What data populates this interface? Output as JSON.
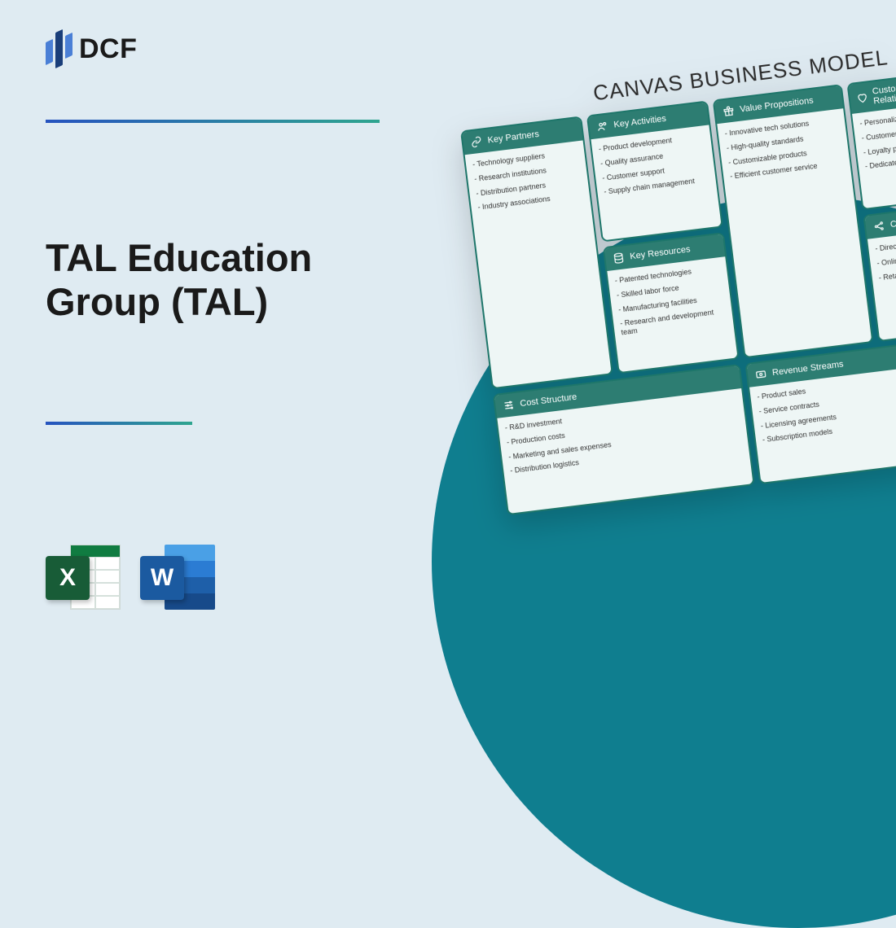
{
  "colors": {
    "page_bg": "#dfebf2",
    "circle": "#0f7e8f",
    "card_header_bg": "#2d7d72",
    "card_border": "#1e766a",
    "card_body_bg": "#eef6f5",
    "gradient_start": "#2653bf",
    "gradient_end": "#2ea58f",
    "logo_light": "#4a7fd6",
    "logo_dark": "#1a3e7a"
  },
  "logo": {
    "text": "DCF"
  },
  "title": "TAL Education\nGroup (TAL)",
  "app_icons": {
    "excel": "X",
    "word": "W"
  },
  "canvas": {
    "title": "CANVAS BUSINESS MODEL",
    "key_partners": {
      "label": "Key Partners",
      "items": [
        "Technology suppliers",
        "Research institutions",
        "Distribution partners",
        "Industry associations"
      ]
    },
    "key_activities": {
      "label": "Key Activities",
      "items": [
        "Product development",
        "Quality assurance",
        "Customer support",
        "Supply chain management"
      ]
    },
    "key_resources": {
      "label": "Key Resources",
      "items": [
        "Patented technologies",
        "Skilled labor force",
        "Manufacturing facilities",
        "Research and development team"
      ]
    },
    "value_propositions": {
      "label": "Value Propositions",
      "items": [
        "Innovative tech solutions",
        "High-quality standards",
        "Customizable products",
        "Efficient customer service"
      ]
    },
    "customer_relationships": {
      "label": "Customer Relationships",
      "items": [
        "Personalized service",
        "Customer feedback",
        "Loyalty programs",
        "Dedicated support"
      ]
    },
    "channels": {
      "label": "Channels",
      "items": [
        "Direct sales",
        "Online platforms",
        "Retail partners"
      ]
    },
    "cost_structure": {
      "label": "Cost Structure",
      "items": [
        "R&D investment",
        "Production costs",
        "Marketing and sales expenses",
        "Distribution logistics"
      ]
    },
    "revenue_streams": {
      "label": "Revenue Streams",
      "items": [
        "Product sales",
        "Service contracts",
        "Licensing agreements",
        "Subscription models"
      ]
    }
  }
}
